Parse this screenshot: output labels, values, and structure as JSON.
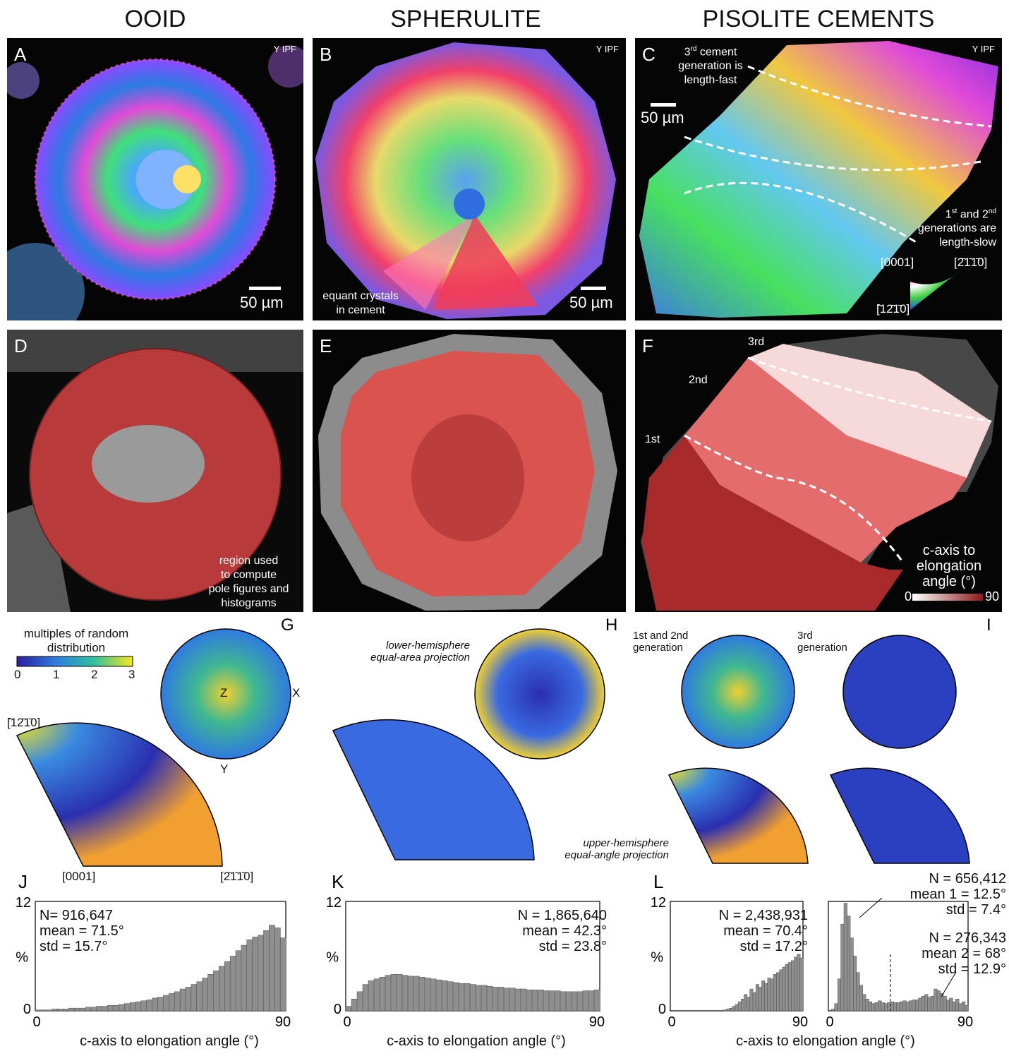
{
  "columns": {
    "ooid": "OOID",
    "spherulite": "SPHERULITE",
    "pisolite": "PISOLITE CEMENTS"
  },
  "panels": {
    "A": {
      "label": "A",
      "ipf": "Y IPF",
      "scale": "50 µm"
    },
    "B": {
      "label": "B",
      "ipf": "Y IPF",
      "scale": "50 µm",
      "note": "equant crystals in cement"
    },
    "C": {
      "label": "C",
      "ipf": "Y IPF",
      "scale": "50 µm",
      "note3_pre": "3",
      "note3_sup": "rd",
      "note3_post": " cement",
      "note3_l2": "generation is",
      "note3_l3": "length-fast",
      "note12_a": "1",
      "note12_sa": "st",
      "note12_b": " and 2",
      "note12_sb": "nd",
      "note12_l2": "generations are",
      "note12_l3": "length-slow",
      "key_0001": "[0001]",
      "key_2110": "[2̄1̄1̄0]",
      "key_1210": "[̄12̄1̄0]"
    },
    "D": {
      "label": "D",
      "note_l1": "region used",
      "note_l2": "to compute",
      "note_l3": "pole figures and",
      "note_l4": "histograms"
    },
    "E": {
      "label": "E"
    },
    "F": {
      "label": "F",
      "gen1": "1st",
      "gen2": "2nd",
      "gen3": "3rd",
      "cbar_l1": "c-axis to",
      "cbar_l2": "elongation",
      "cbar_l3": "angle (°)",
      "cbar_min": "0",
      "cbar_max": "90"
    }
  },
  "pole": {
    "G": {
      "label": "G",
      "z": "Z",
      "x": "X",
      "y": "Y",
      "k1210": "[̄12̄1̄0]",
      "k0001": "[0001]",
      "k2110": "[2̄1̄1̄0]"
    },
    "H": {
      "label": "H",
      "lower_l1": "lower-hemisphere",
      "lower_l2": "equal-area projection",
      "upper_l1": "upper-hemisphere",
      "upper_l2": "equal-angle projection"
    },
    "I": {
      "label": "I",
      "gen12_l1": "1st and 2nd",
      "gen12_l2": "generation",
      "gen3_l1": "3rd",
      "gen3_l2": "generation"
    }
  },
  "mrd": {
    "title_l1": "multiples of random",
    "title_l2": "distribution",
    "ticks": [
      "0",
      "1",
      "2",
      "3"
    ]
  },
  "hist_common": {
    "xlabel": "c-axis to elongation angle (°)",
    "ylabel": "%",
    "y_top": "12",
    "y_zero": "0",
    "x_zero": "0",
    "x_max": "90"
  },
  "chart_data": [
    {
      "type": "bar",
      "panel": "J",
      "label": "J",
      "n": "N= 916,647",
      "mean": "mean = 71.5°",
      "std": "std = 15.7°",
      "xlabel": "c-axis to elongation angle (°)",
      "ylabel": "%",
      "xlim": [
        0,
        90
      ],
      "ylim": [
        0,
        12
      ],
      "values": [
        0.1,
        0.1,
        0.1,
        0.2,
        0.2,
        0.2,
        0.3,
        0.3,
        0.3,
        0.4,
        0.4,
        0.5,
        0.5,
        0.6,
        0.6,
        0.7,
        0.8,
        0.9,
        1.0,
        1.1,
        1.2,
        1.4,
        1.5,
        1.7,
        1.9,
        2.1,
        2.4,
        2.6,
        2.9,
        3.2,
        3.6,
        4.0,
        4.4,
        4.9,
        5.4,
        6.0,
        6.6,
        7.2,
        7.8,
        8.1,
        8.3,
        8.8,
        9.4,
        9.1,
        8.0
      ]
    },
    {
      "type": "bar",
      "panel": "K",
      "label": "K",
      "n": "N = 1,865,640",
      "mean": "mean = 42.3°",
      "std": "std = 23.8°",
      "xlabel": "c-axis to elongation angle (°)",
      "ylabel": "%",
      "xlim": [
        0,
        90
      ],
      "ylim": [
        0,
        12
      ],
      "values": [
        0.5,
        1.3,
        2.1,
        2.9,
        3.3,
        3.5,
        3.7,
        3.9,
        4.0,
        4.0,
        3.9,
        3.8,
        3.8,
        3.7,
        3.6,
        3.5,
        3.4,
        3.3,
        3.2,
        3.1,
        3.0,
        3.0,
        2.9,
        2.8,
        2.8,
        2.7,
        2.6,
        2.6,
        2.5,
        2.5,
        2.4,
        2.4,
        2.3,
        2.3,
        2.3,
        2.2,
        2.2,
        2.2,
        2.1,
        2.1,
        2.1,
        2.1,
        2.2,
        2.2,
        2.3
      ]
    },
    {
      "type": "bar",
      "panel": "L1",
      "label": "L",
      "n": "N = 2,438,931",
      "mean": "mean = 70.4°",
      "std": "std = 17.2°",
      "xlabel": "c-axis to elongation angle (°)",
      "ylabel": "%",
      "xlim": [
        0,
        90
      ],
      "ylim": [
        0,
        12
      ],
      "values": [
        0.0,
        0.0,
        0.0,
        0.0,
        0.0,
        0.0,
        0.0,
        0.0,
        0.0,
        0.0,
        0.0,
        0.0,
        0.0,
        0.0,
        0.0,
        0.0,
        0.0,
        0.0,
        0.1,
        0.2,
        0.3,
        0.5,
        0.7,
        1.0,
        1.3,
        1.8,
        1.5,
        2.4,
        2.0,
        2.9,
        2.6,
        3.3,
        3.0,
        3.6,
        3.5,
        4.0,
        4.2,
        4.5,
        4.8,
        5.1,
        5.3,
        5.5,
        5.9,
        6.2,
        5.8
      ]
    },
    {
      "type": "bar",
      "panel": "L2",
      "series": [
        {
          "name": "",
          "n": "N = 656,412",
          "mean": "mean 1  = 12.5°",
          "std": "std = 7.4°"
        },
        {
          "name": "",
          "n": "N = 276,343",
          "mean": "mean 2 = 68°",
          "std": "std = 12.9°"
        }
      ],
      "xlabel": "c-axis to elongation angle (°)",
      "ylabel": "%",
      "xlim": [
        0,
        90
      ],
      "ylim": [
        0,
        12
      ],
      "values": [
        0.0,
        0.2,
        0.8,
        3.5,
        9.5,
        11.8,
        10.4,
        8.0,
        6.0,
        4.2,
        2.8,
        1.8,
        1.3,
        1.0,
        0.8,
        0.9,
        1.1,
        0.9,
        0.8,
        0.9,
        1.0,
        0.9,
        0.9,
        1.0,
        1.1,
        1.0,
        1.1,
        1.2,
        1.2,
        1.4,
        1.6,
        1.8,
        1.5,
        1.6,
        2.4,
        2.2,
        1.9,
        1.6,
        1.2,
        1.4,
        1.0,
        1.3,
        0.8,
        1.0,
        0.6
      ]
    }
  ]
}
